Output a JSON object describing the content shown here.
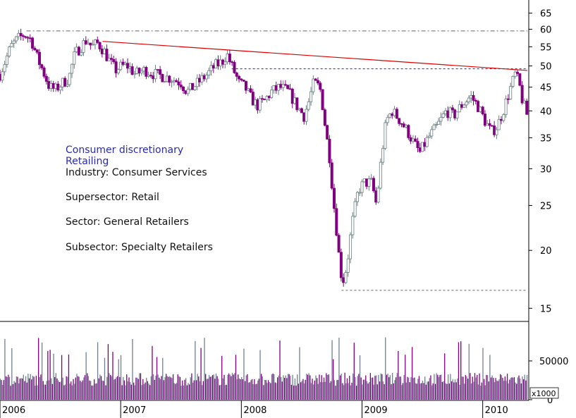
{
  "chart_data": [
    {
      "type": "candlestick",
      "title": "",
      "ylim": [
        14.5,
        67
      ],
      "ylog": true,
      "y_ticks": [
        "65",
        "60",
        "55",
        "50",
        "45",
        "40",
        "35",
        "30",
        "25",
        "20",
        "15"
      ],
      "x_ticks": [
        "2006",
        "2007",
        "2008",
        "2009",
        "2010"
      ],
      "x_range": [
        2006.0,
        2010.37
      ],
      "annotations": [
        {
          "text": "Consumer discretionary",
          "color": "#2a2ab0"
        },
        {
          "text": "Retailing",
          "color": "#2a2ab0"
        },
        {
          "text": "Industry: Consumer Services",
          "color": "#111111"
        },
        {
          "text": "Supersector: Retail",
          "color": "#111111"
        },
        {
          "text": "Sector: General Retailers",
          "color": "#111111"
        },
        {
          "text": "Subsector: Specialty Retailers",
          "color": "#111111"
        }
      ],
      "reference_lines": [
        {
          "kind": "horizontal-dashdot",
          "y": 59.5,
          "x_start": 2006.22,
          "x_end": 2010.37,
          "color": "#666666"
        },
        {
          "kind": "horizontal-dotted",
          "y": 49.3,
          "x_start": 2007.92,
          "x_end": 2010.37,
          "color": "#1a1aff"
        },
        {
          "kind": "horizontal-dotted",
          "y": 16.4,
          "x_start": 2008.83,
          "x_end": 2010.37,
          "color": "#666666"
        },
        {
          "kind": "trendline",
          "y_start": 56.5,
          "y_end": 48.9,
          "x_start": 2006.85,
          "x_end": 2010.37,
          "color": "#dd0000"
        }
      ],
      "close_anchors": [
        [
          2006.0,
          48
        ],
        [
          2006.04,
          51
        ],
        [
          2006.09,
          55
        ],
        [
          2006.14,
          57
        ],
        [
          2006.2,
          58.5
        ],
        [
          2006.26,
          57
        ],
        [
          2006.31,
          52
        ],
        [
          2006.36,
          48.5
        ],
        [
          2006.41,
          45
        ],
        [
          2006.46,
          44.5
        ],
        [
          2006.52,
          46
        ],
        [
          2006.57,
          47
        ],
        [
          2006.62,
          53
        ],
        [
          2006.67,
          55
        ],
        [
          2006.72,
          57
        ],
        [
          2006.76,
          55
        ],
        [
          2006.81,
          56
        ],
        [
          2006.86,
          54
        ],
        [
          2006.91,
          51
        ],
        [
          2006.96,
          49
        ],
        [
          2007.01,
          50
        ],
        [
          2007.06,
          50
        ],
        [
          2007.12,
          48
        ],
        [
          2007.2,
          49
        ],
        [
          2007.28,
          48
        ],
        [
          2007.35,
          47.5
        ],
        [
          2007.42,
          47
        ],
        [
          2007.5,
          46
        ],
        [
          2007.55,
          44
        ],
        [
          2007.6,
          45
        ],
        [
          2007.66,
          46.5
        ],
        [
          2007.72,
          48
        ],
        [
          2007.78,
          50
        ],
        [
          2007.84,
          51
        ],
        [
          2007.88,
          53
        ],
        [
          2007.92,
          50
        ],
        [
          2007.98,
          46
        ],
        [
          2008.03,
          45
        ],
        [
          2008.07,
          43
        ],
        [
          2008.13,
          41
        ],
        [
          2008.19,
          42
        ],
        [
          2008.25,
          44
        ],
        [
          2008.32,
          45
        ],
        [
          2008.39,
          44
        ],
        [
          2008.46,
          41
        ],
        [
          2008.52,
          39
        ],
        [
          2008.56,
          42
        ],
        [
          2008.6,
          46
        ],
        [
          2008.65,
          45
        ],
        [
          2008.68,
          40
        ],
        [
          2008.7,
          36
        ],
        [
          2008.73,
          32
        ],
        [
          2008.76,
          26
        ],
        [
          2008.79,
          22
        ],
        [
          2008.82,
          18
        ],
        [
          2008.85,
          17.2
        ],
        [
          2008.88,
          19
        ],
        [
          2008.92,
          23
        ],
        [
          2008.97,
          27
        ],
        [
          2009.02,
          28
        ],
        [
          2009.08,
          28
        ],
        [
          2009.12,
          25
        ],
        [
          2009.15,
          30
        ],
        [
          2009.2,
          38
        ],
        [
          2009.25,
          40
        ],
        [
          2009.32,
          38
        ],
        [
          2009.38,
          36
        ],
        [
          2009.43,
          34
        ],
        [
          2009.48,
          32.5
        ],
        [
          2009.55,
          35
        ],
        [
          2009.62,
          37
        ],
        [
          2009.7,
          40
        ],
        [
          2009.76,
          39
        ],
        [
          2009.82,
          41
        ],
        [
          2009.9,
          43
        ],
        [
          2009.96,
          41
        ],
        [
          2010.02,
          38
        ],
        [
          2010.07,
          36
        ],
        [
          2010.12,
          37
        ],
        [
          2010.17,
          40
        ],
        [
          2010.22,
          44
        ],
        [
          2010.27,
          48
        ],
        [
          2010.3,
          46
        ],
        [
          2010.33,
          42
        ],
        [
          2010.37,
          39
        ]
      ]
    },
    {
      "type": "bar",
      "title": "",
      "y_ticks": [
        "50000",
        "0"
      ],
      "y_unit_label": "x1000",
      "ylim": [
        0,
        100000
      ],
      "volume_level": 24000,
      "volume_spike_level": 60000
    }
  ],
  "colors": {
    "down_candle": "#800080",
    "up_candle": "#6a7e82",
    "vol_a": "#800080",
    "vol_b": "#708090",
    "grid_frame": "#000000"
  }
}
